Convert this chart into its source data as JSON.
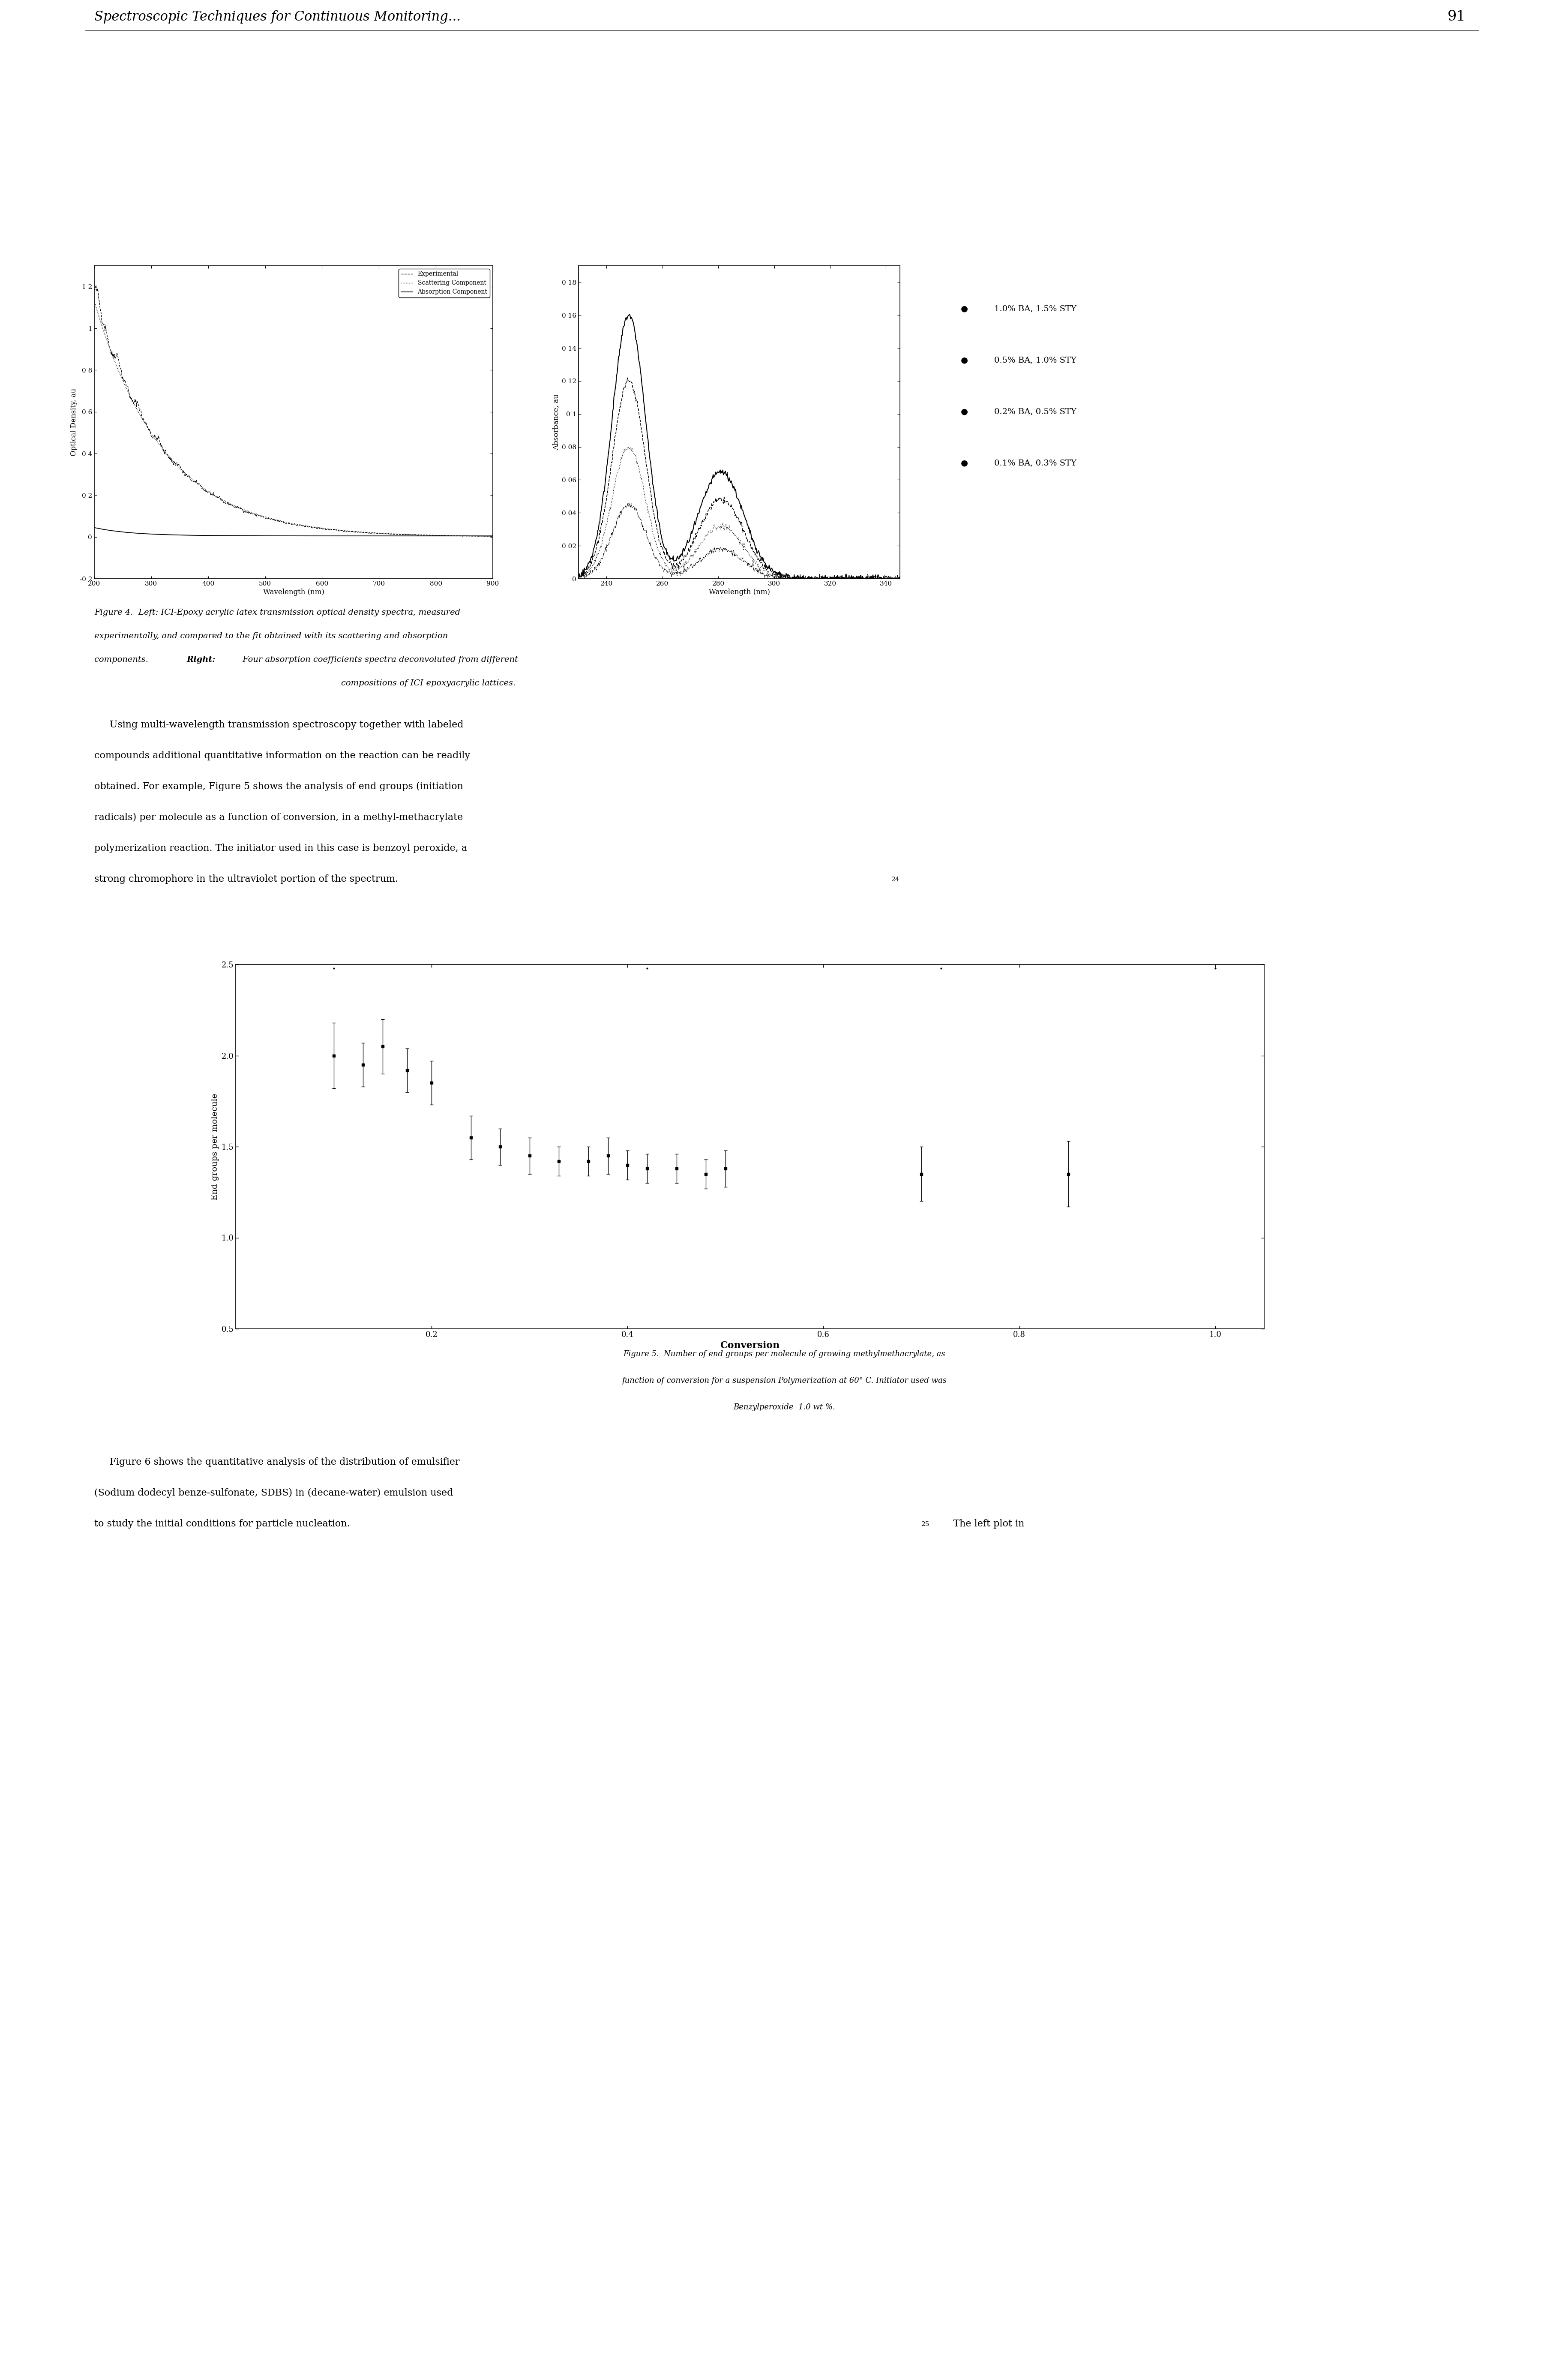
{
  "page_header_text": "Spectroscopic Techniques for Continuous Monitoring...",
  "page_number": "91",
  "background_color": "#ffffff",
  "text_color": "#000000",
  "fig4_caption_line1": "Figure 4.  Left: ICI-Epoxy acrylic latex transmission optical density spectra, measured",
  "fig4_caption_line2": "experimentally, and compared to the fit obtained with its scattering and absorption",
  "fig4_caption_line3": "components.  Right: Four absorption coefficients spectra deconvoluted from different",
  "fig4_caption_line4": "compositions of ICI-epoxyacrylic lattices.",
  "body_line1": "     Using multi-wavelength transmission spectroscopy together with labeled",
  "body_line2": "compounds additional quantitative information on the reaction can be readily",
  "body_line3": "obtained. For example, Figure 5 shows the analysis of end groups (initiation",
  "body_line4": "radicals) per molecule as a function of conversion, in a methyl-methacrylate",
  "body_line5": "polymerization reaction. The initiator used in this case is benzoyl peroxide, a",
  "body_line6": "strong chromophore in the ultraviolet portion of the spectrum.",
  "body_superscript": "24",
  "fig5_caption_line1": "Figure 5.  Number of end groups per molecule of growing methylmethacrylate, as",
  "fig5_caption_line2": "function of conversion for a suspension Polymerization at 60° C. Initiator used was",
  "fig5_caption_line3": "Benzylperoxide  1.0 wt %.",
  "fig6_line1": "     Figure 6 shows the quantitative analysis of the distribution of emulsifier",
  "fig6_line2": "(Sodium dodecyl benze-sulfonate, SDBS) in (decane-water) emulsion used",
  "fig6_line3": "to study the initial conditions for particle nucleation.",
  "fig6_superscript": "25",
  "fig6_line3b": "  The left plot in",
  "left_plot": {
    "xlabel": "Wavelength (nm)",
    "ylabel": "Optical Density, au",
    "xlim": [
      200,
      900
    ],
    "ylim": [
      -0.2,
      1.3
    ],
    "xticks": [
      200,
      300,
      400,
      500,
      600,
      700,
      800,
      900
    ],
    "yticks": [
      -0.2,
      0,
      0.2,
      0.4,
      0.6,
      0.8,
      1.0,
      1.2
    ],
    "ytick_labels": [
      "-0 2",
      "0",
      "0 2",
      "0 4",
      "0 6",
      "0 8",
      "1",
      "1 2"
    ],
    "legend": [
      "Experimental",
      "Scattering Component",
      "Absorption Component"
    ]
  },
  "right_plot": {
    "xlabel": "Wavelength (nm)",
    "ylabel": "Absorbance, au",
    "xlim": [
      230,
      345
    ],
    "ylim": [
      0,
      0.19
    ],
    "xticks": [
      240,
      260,
      280,
      300,
      320,
      340
    ],
    "yticks": [
      0,
      0.02,
      0.04,
      0.06,
      0.08,
      0.1,
      0.12,
      0.14,
      0.16,
      0.18
    ],
    "ytick_labels": [
      "0",
      "0 02",
      "0 04",
      "0 06",
      "0 08",
      "0 1",
      "0 12",
      "0 14",
      "0 16",
      "0 18"
    ],
    "legend": [
      "1.0% BA, 1.5% STY",
      "0.5% BA, 1.0% STY",
      "0.2% BA, 0.5% STY",
      "0.1% BA, 0.3% STY"
    ]
  },
  "fig5_plot": {
    "xlabel": "Conversion",
    "ylabel": "End groups per molecule",
    "xlim": [
      0.0,
      1.05
    ],
    "ylim": [
      0.5,
      2.5
    ],
    "xticks": [
      0.2,
      0.4,
      0.6,
      0.8,
      1.0
    ],
    "yticks": [
      0.5,
      1.0,
      1.5,
      2.0,
      2.5
    ],
    "conv": [
      0.1,
      0.13,
      0.15,
      0.175,
      0.2,
      0.24,
      0.27,
      0.3,
      0.33,
      0.36,
      0.38,
      0.4,
      0.42,
      0.45,
      0.48,
      0.5,
      0.7,
      0.85
    ],
    "endgrp": [
      2.0,
      1.95,
      2.05,
      1.92,
      1.85,
      1.55,
      1.5,
      1.45,
      1.42,
      1.42,
      1.45,
      1.4,
      1.38,
      1.38,
      1.35,
      1.38,
      1.35,
      1.35
    ],
    "err": [
      0.18,
      0.12,
      0.15,
      0.12,
      0.12,
      0.12,
      0.1,
      0.1,
      0.08,
      0.08,
      0.1,
      0.08,
      0.08,
      0.08,
      0.08,
      0.1,
      0.15,
      0.18
    ]
  }
}
